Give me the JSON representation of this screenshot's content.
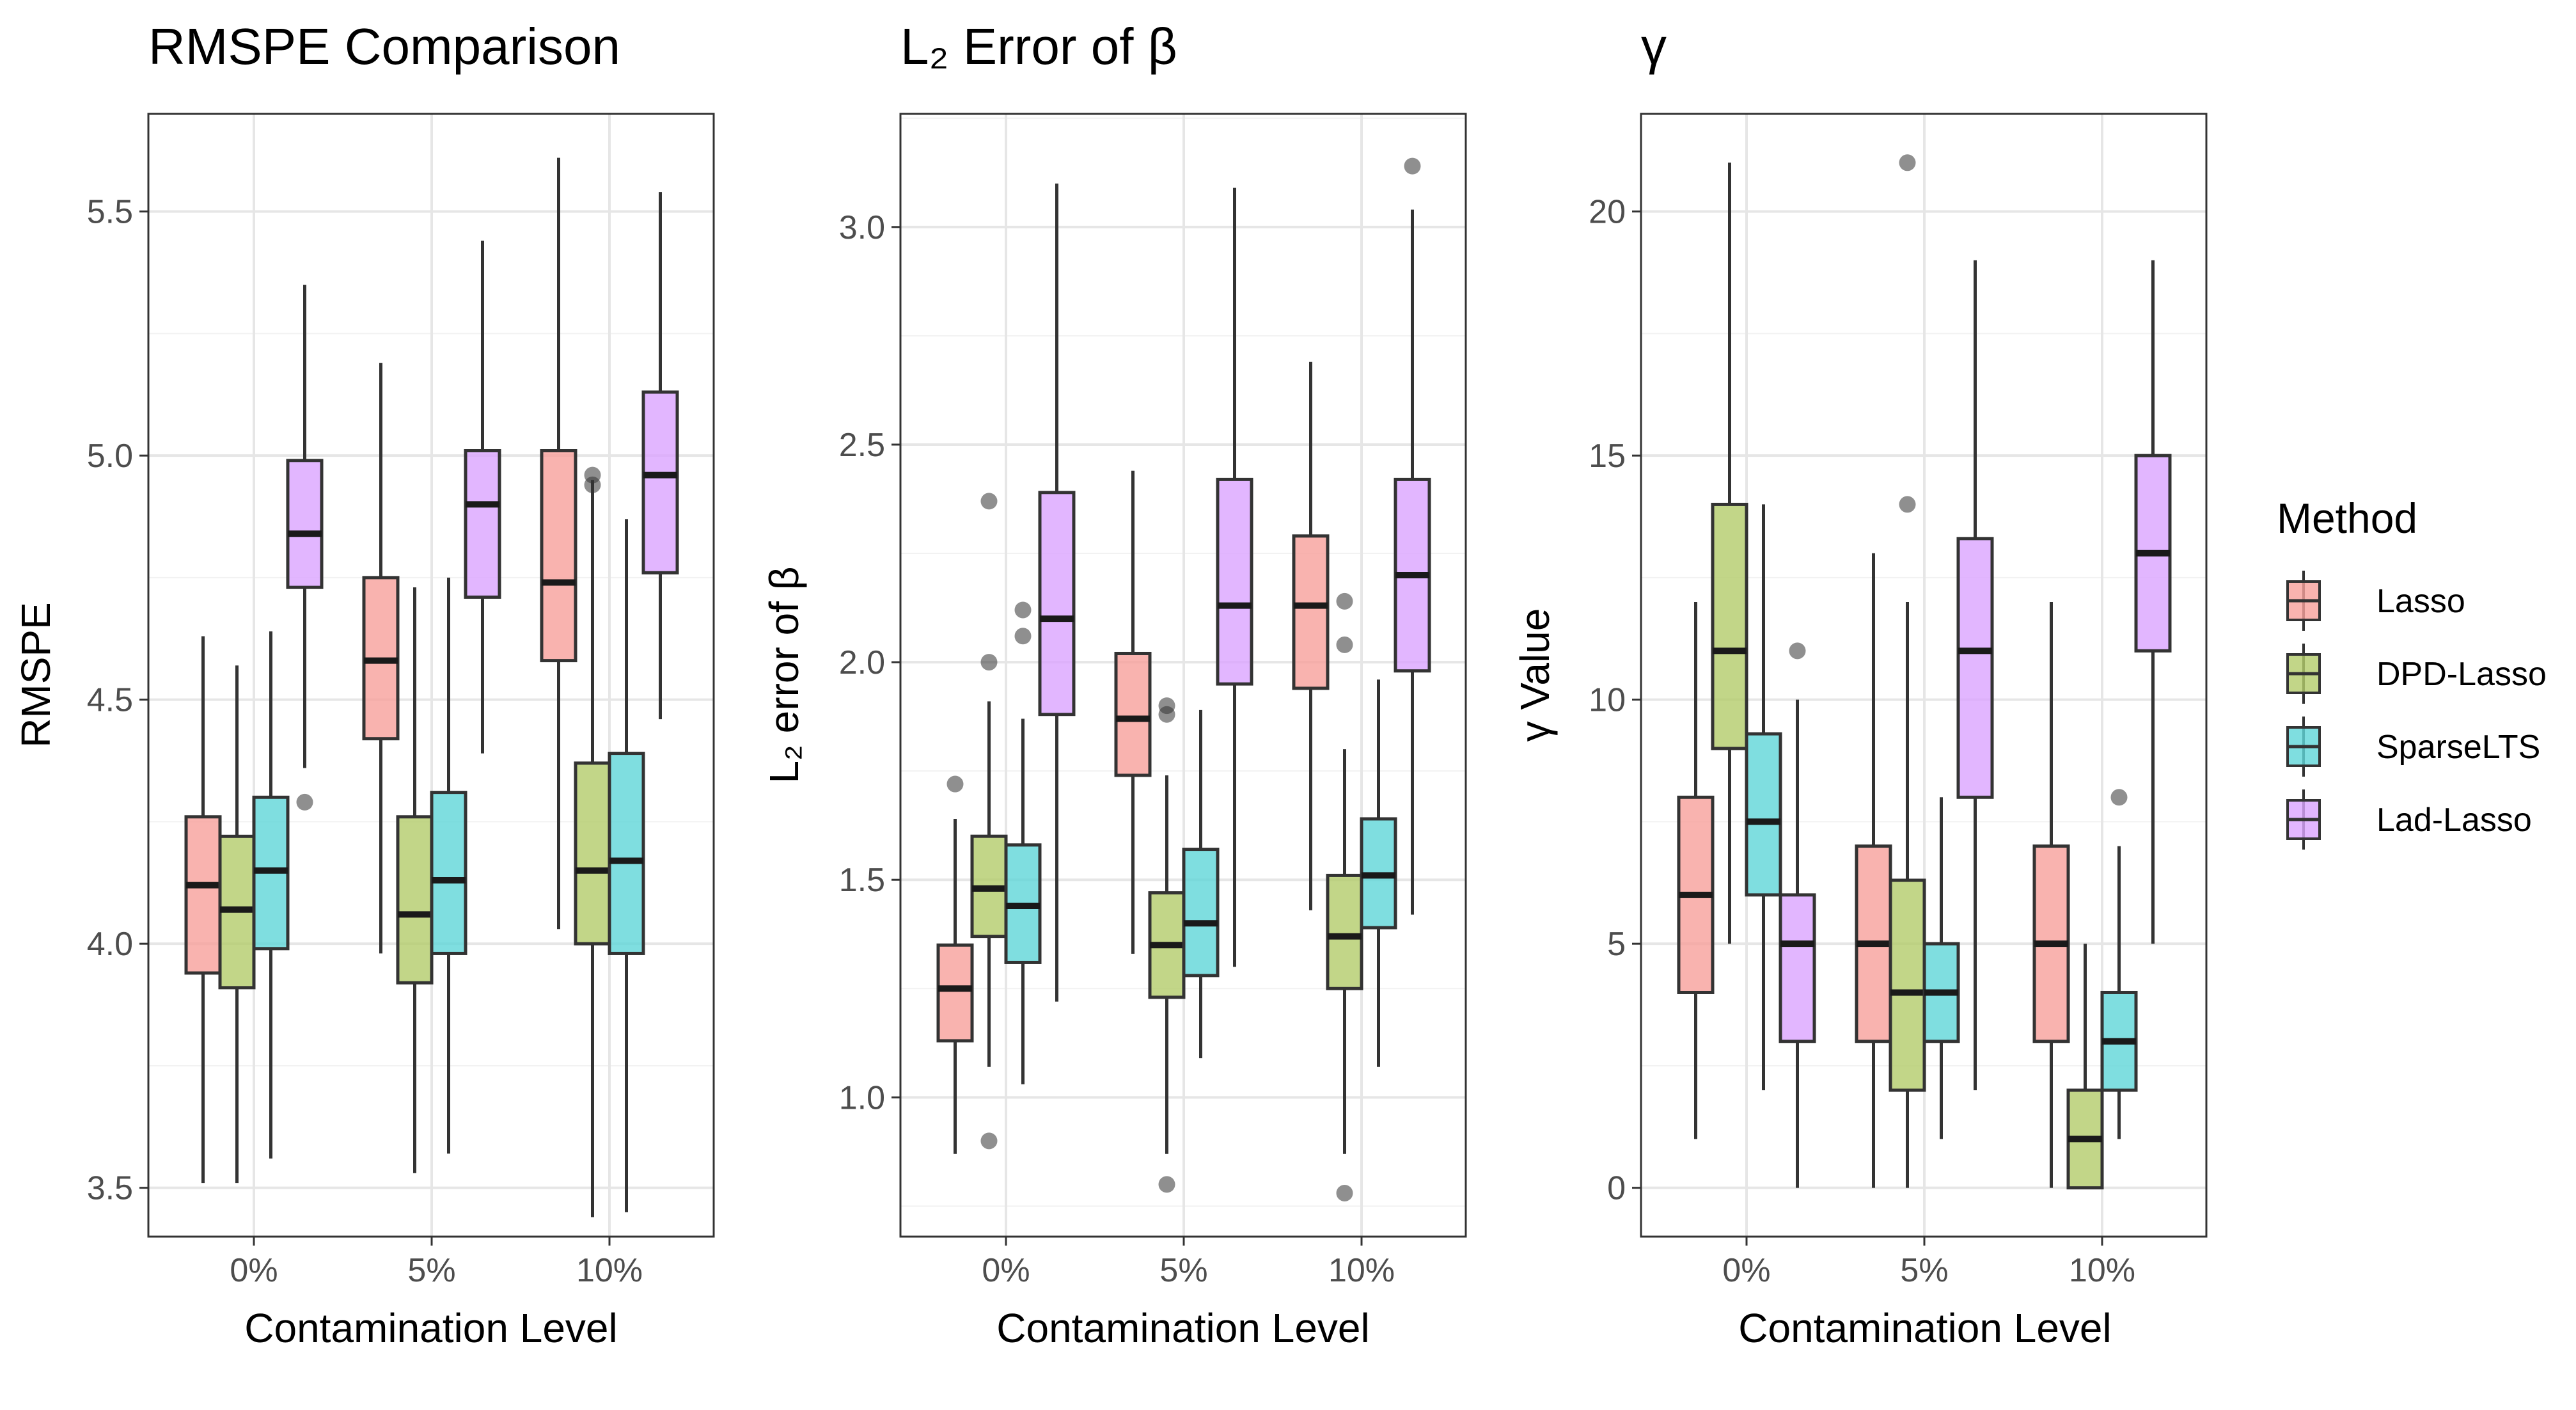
{
  "chart_data": [
    {
      "type": "boxplot",
      "title": "RMSPE Comparison",
      "xlabel": "Contamination Level",
      "ylabel": "RMSPE",
      "categories": [
        "0%",
        "5%",
        "10%"
      ],
      "ylim": [
        3.4,
        5.7
      ],
      "yticks": [
        3.5,
        4.0,
        4.5,
        5.0,
        5.5
      ],
      "ytick_labels": [
        "3.5",
        "4.0",
        "4.5",
        "5.0",
        "5.5"
      ],
      "grid": true,
      "series": [
        {
          "name": "Lasso",
          "boxes": [
            {
              "min": 3.51,
              "q1": 3.94,
              "median": 4.12,
              "q3": 4.26,
              "max": 4.63,
              "outliers": []
            },
            {
              "min": 3.98,
              "q1": 4.42,
              "median": 4.58,
              "q3": 4.75,
              "max": 5.19,
              "outliers": []
            },
            {
              "min": 4.03,
              "q1": 4.58,
              "median": 4.74,
              "q3": 5.01,
              "max": 5.61,
              "outliers": []
            }
          ]
        },
        {
          "name": "DPD-Lasso",
          "boxes": [
            {
              "min": 3.51,
              "q1": 3.91,
              "median": 4.07,
              "q3": 4.22,
              "max": 4.57,
              "outliers": []
            },
            {
              "min": 3.53,
              "q1": 3.92,
              "median": 4.06,
              "q3": 4.26,
              "max": 4.73,
              "outliers": []
            },
            {
              "min": 3.44,
              "q1": 4.0,
              "median": 4.15,
              "q3": 4.37,
              "max": 4.95,
              "outliers": [
                4.94,
                4.96
              ]
            }
          ]
        },
        {
          "name": "SparseLTS",
          "boxes": [
            {
              "min": 3.56,
              "q1": 3.99,
              "median": 4.15,
              "q3": 4.3,
              "max": 4.64,
              "outliers": []
            },
            {
              "min": 3.57,
              "q1": 3.98,
              "median": 4.13,
              "q3": 4.31,
              "max": 4.75,
              "outliers": []
            },
            {
              "min": 3.45,
              "q1": 3.98,
              "median": 4.17,
              "q3": 4.39,
              "max": 4.87,
              "outliers": []
            }
          ]
        },
        {
          "name": "Lad-Lasso",
          "boxes": [
            {
              "min": 4.36,
              "q1": 4.73,
              "median": 4.84,
              "q3": 4.99,
              "max": 5.35,
              "outliers": [
                4.29
              ]
            },
            {
              "min": 4.39,
              "q1": 4.71,
              "median": 4.9,
              "q3": 5.01,
              "max": 5.44,
              "outliers": []
            },
            {
              "min": 4.46,
              "q1": 4.76,
              "median": 4.96,
              "q3": 5.13,
              "max": 5.54,
              "outliers": []
            }
          ]
        }
      ]
    },
    {
      "type": "boxplot",
      "title": "L₂ Error of β",
      "xlabel": "Contamination Level",
      "ylabel": "L₂ error of β",
      "categories": [
        "0%",
        "5%",
        "10%"
      ],
      "ylim": [
        0.68,
        3.26
      ],
      "yticks": [
        1.0,
        1.5,
        2.0,
        2.5,
        3.0
      ],
      "ytick_labels": [
        "1.0",
        "1.5",
        "2.0",
        "2.5",
        "3.0"
      ],
      "grid": true,
      "series": [
        {
          "name": "Lasso",
          "boxes": [
            {
              "min": 0.87,
              "q1": 1.13,
              "median": 1.25,
              "q3": 1.35,
              "max": 1.64,
              "outliers": [
                1.72
              ]
            },
            {
              "min": 1.33,
              "q1": 1.74,
              "median": 1.87,
              "q3": 2.02,
              "max": 2.44,
              "outliers": []
            },
            {
              "min": 1.43,
              "q1": 1.94,
              "median": 2.13,
              "q3": 2.29,
              "max": 2.69,
              "outliers": []
            }
          ]
        },
        {
          "name": "DPD-Lasso",
          "boxes": [
            {
              "min": 1.07,
              "q1": 1.37,
              "median": 1.48,
              "q3": 1.6,
              "max": 1.91,
              "outliers": [
                0.9,
                2.0,
                2.37
              ]
            },
            {
              "min": 0.87,
              "q1": 1.23,
              "median": 1.35,
              "q3": 1.47,
              "max": 1.74,
              "outliers": [
                0.8,
                1.88,
                1.9
              ]
            },
            {
              "min": 0.87,
              "q1": 1.25,
              "median": 1.37,
              "q3": 1.51,
              "max": 1.8,
              "outliers": [
                0.78,
                2.04,
                2.14
              ]
            }
          ]
        },
        {
          "name": "SparseLTS",
          "boxes": [
            {
              "min": 1.03,
              "q1": 1.31,
              "median": 1.44,
              "q3": 1.58,
              "max": 1.87,
              "outliers": [
                2.06,
                2.12
              ]
            },
            {
              "min": 1.09,
              "q1": 1.28,
              "median": 1.4,
              "q3": 1.57,
              "max": 1.89,
              "outliers": []
            },
            {
              "min": 1.07,
              "q1": 1.39,
              "median": 1.51,
              "q3": 1.64,
              "max": 1.96,
              "outliers": []
            }
          ]
        },
        {
          "name": "Lad-Lasso",
          "boxes": [
            {
              "min": 1.22,
              "q1": 1.88,
              "median": 2.1,
              "q3": 2.39,
              "max": 3.1,
              "outliers": []
            },
            {
              "min": 1.3,
              "q1": 1.95,
              "median": 2.13,
              "q3": 2.42,
              "max": 3.09,
              "outliers": []
            },
            {
              "min": 1.42,
              "q1": 1.98,
              "median": 2.2,
              "q3": 2.42,
              "max": 3.04,
              "outliers": [
                3.14
              ]
            }
          ]
        }
      ]
    },
    {
      "type": "boxplot",
      "title": "γ",
      "xlabel": "Contamination Level",
      "ylabel": "γ Value",
      "categories": [
        "0%",
        "5%",
        "10%"
      ],
      "ylim": [
        -1.0,
        22.0
      ],
      "yticks": [
        0,
        5,
        10,
        15,
        20
      ],
      "ytick_labels": [
        "0",
        "5",
        "10",
        "15",
        "20"
      ],
      "grid": true,
      "series": [
        {
          "name": "Lasso",
          "boxes": [
            {
              "min": 1,
              "q1": 4,
              "median": 6,
              "q3": 8,
              "max": 12,
              "outliers": []
            },
            {
              "min": 0,
              "q1": 3,
              "median": 5,
              "q3": 7,
              "max": 13,
              "outliers": []
            },
            {
              "min": 0,
              "q1": 3,
              "median": 5,
              "q3": 7,
              "max": 12,
              "outliers": []
            }
          ]
        },
        {
          "name": "DPD-Lasso",
          "boxes": [
            {
              "min": 5,
              "q1": 9,
              "median": 11,
              "q3": 14,
              "max": 21,
              "outliers": []
            },
            {
              "min": 0,
              "q1": 2,
              "median": 4,
              "q3": 6.3,
              "max": 12,
              "outliers": [
                14,
                21
              ]
            },
            {
              "min": 0,
              "q1": 0,
              "median": 1,
              "q3": 2,
              "max": 5,
              "outliers": []
            }
          ]
        },
        {
          "name": "SparseLTS",
          "boxes": [
            {
              "min": 2,
              "q1": 6,
              "median": 7.5,
              "q3": 9.3,
              "max": 14,
              "outliers": []
            },
            {
              "min": 1,
              "q1": 3,
              "median": 4,
              "q3": 5,
              "max": 8,
              "outliers": []
            },
            {
              "min": 1,
              "q1": 2,
              "median": 3,
              "q3": 4,
              "max": 7,
              "outliers": [
                8
              ]
            }
          ]
        },
        {
          "name": "Lad-Lasso",
          "boxes": [
            {
              "min": 0,
              "q1": 3,
              "median": 5,
              "q3": 6,
              "max": 10,
              "outliers": [
                11
              ]
            },
            {
              "min": 2,
              "q1": 8,
              "median": 11,
              "q3": 13.3,
              "max": 19,
              "outliers": []
            },
            {
              "min": 5,
              "q1": 11,
              "median": 13,
              "q3": 15,
              "max": 19,
              "outliers": []
            }
          ]
        }
      ]
    }
  ],
  "legend": {
    "title": "Method",
    "position": "right",
    "items": [
      {
        "label": "Lasso",
        "fill": "#f8a09b",
        "stroke": "#8c3a36"
      },
      {
        "label": "DPD-Lasso",
        "fill": "#b3cc6a",
        "stroke": "#4f5e1f"
      },
      {
        "label": "SparseLTS",
        "fill": "#5fd6d8",
        "stroke": "#1f6f70"
      },
      {
        "label": "Lad-Lasso",
        "fill": "#dba4ff",
        "stroke": "#6b3a8c"
      }
    ]
  }
}
